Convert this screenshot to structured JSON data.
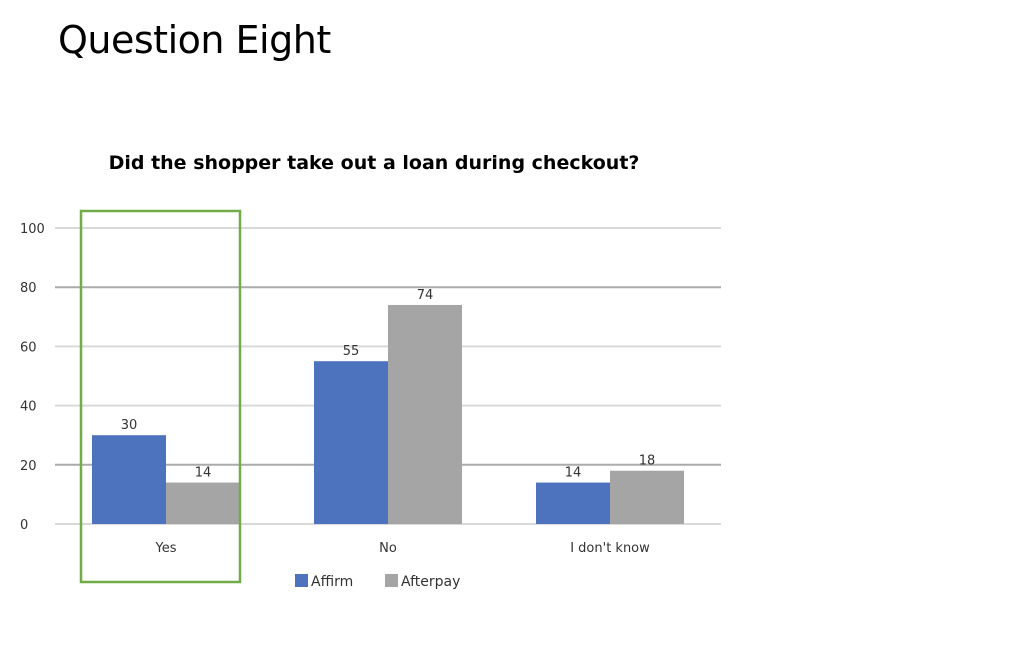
{
  "slide": {
    "title": "Question Eight"
  },
  "highlight_color": "#70ad47",
  "chart_data": {
    "type": "bar",
    "title": "Did the shopper take out a loan during checkout?",
    "categories": [
      "Yes",
      "No",
      "I don't know"
    ],
    "series": [
      {
        "name": "Affirm",
        "values": [
          30,
          55,
          14
        ],
        "color": "#4e73be"
      },
      {
        "name": "Afterpay",
        "values": [
          14,
          74,
          18
        ],
        "color": "#a5a5a5"
      }
    ],
    "ylim": [
      0,
      100
    ],
    "yticks": [
      0,
      20,
      40,
      60,
      80,
      100
    ],
    "grid": true,
    "legend": "bottom",
    "data_labels": true,
    "highlighted_category": "Yes"
  }
}
